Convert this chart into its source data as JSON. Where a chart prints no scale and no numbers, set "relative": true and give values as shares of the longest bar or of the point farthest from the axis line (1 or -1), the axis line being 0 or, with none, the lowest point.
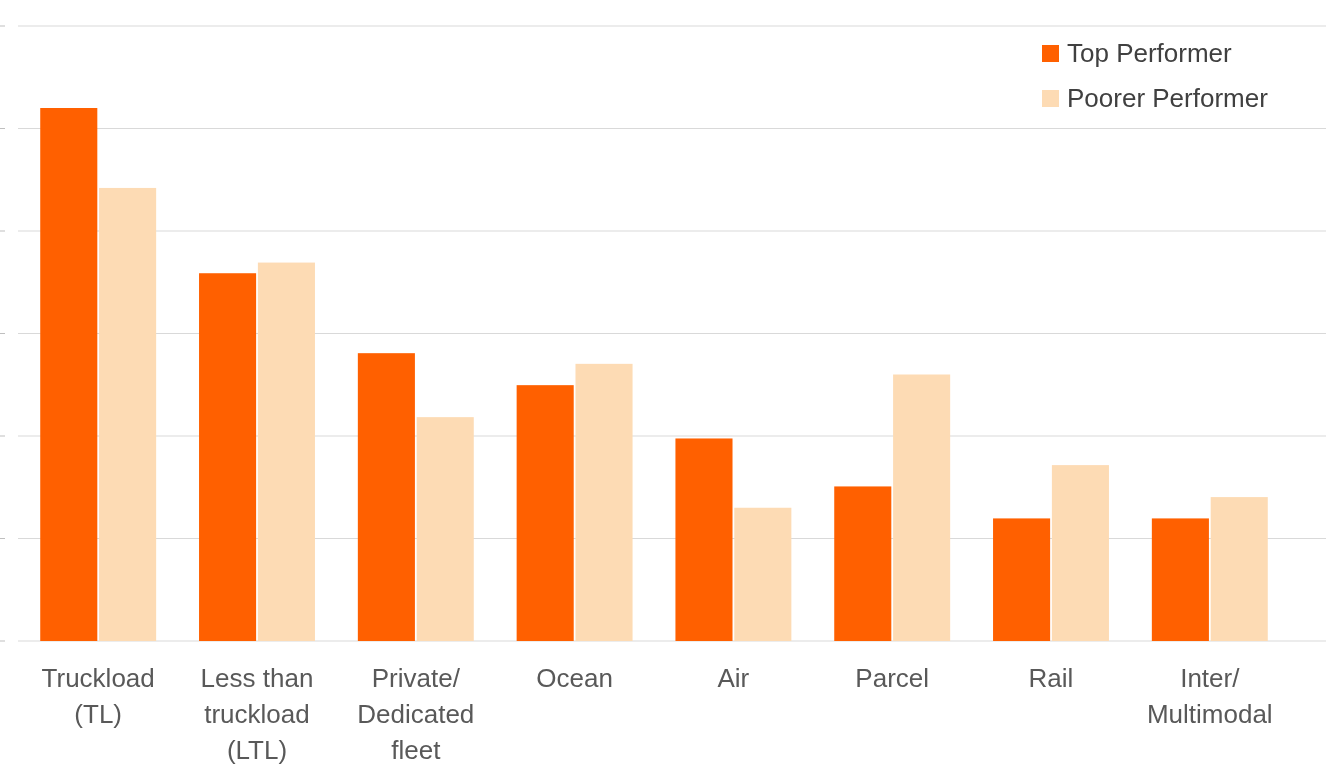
{
  "chart_data": {
    "type": "bar",
    "relative": true,
    "grid": true,
    "legend": "top right",
    "categories": [
      "Truckload (TL)",
      "Less than truckload (LTL)",
      "Private/ Dedicated fleet",
      "Ocean",
      "Air",
      "Parcel",
      "Rail",
      "Inter/ Multimodal"
    ],
    "series": [
      {
        "name": "Top Performer",
        "color": "#ff6000",
        "values": [
          1,
          0.69,
          0.54,
          0.48,
          0.38,
          0.29,
          0.23,
          0.23
        ]
      },
      {
        "name": "Poorer Performer",
        "color": "#fddbb4",
        "values": [
          0.85,
          0.71,
          0.42,
          0.52,
          0.25,
          0.5,
          0.33,
          0.27
        ]
      }
    ]
  }
}
